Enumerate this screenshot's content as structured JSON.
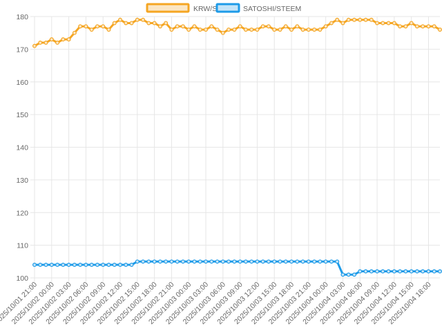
{
  "chart_data": {
    "type": "line",
    "legend_position": "top",
    "grid": true,
    "ylim": [
      100,
      180
    ],
    "y_ticks": [
      100,
      110,
      120,
      130,
      140,
      150,
      160,
      170,
      180
    ],
    "x_tick_labels": [
      "2025/10/01 21:00",
      "2025/10/02 00:00",
      "2025/10/02 03:00",
      "2025/10/02 06:00",
      "2025/10/02 09:00",
      "2025/10/02 12:00",
      "2025/10/02 15:00",
      "2025/10/02 18:00",
      "2025/10/02 21:00",
      "2025/10/03 00:00",
      "2025/10/03 03:00",
      "2025/10/03 06:00",
      "2025/10/03 09:00",
      "2025/10/03 12:00",
      "2025/10/03 15:00",
      "2025/10/03 18:00",
      "2025/10/03 21:00",
      "2025/10/04 00:00",
      "2025/10/04 03:00",
      "2025/10/04 06:00",
      "2025/10/04 09:00",
      "2025/10/04 12:00",
      "2025/10/04 15:00",
      "2025/10/04 18:00"
    ],
    "series": [
      {
        "name": "KRW/STEEM",
        "color": "#f5a623",
        "values": [
          171,
          172,
          172,
          173,
          172,
          173,
          173,
          175,
          177,
          177,
          176,
          177,
          177,
          176,
          178,
          179,
          178,
          178,
          179,
          179,
          178,
          178,
          177,
          178,
          176,
          177,
          177,
          176,
          177,
          176,
          176,
          177,
          176,
          175,
          176,
          176,
          177,
          176,
          176,
          176,
          177,
          177,
          176,
          176,
          177,
          176,
          177,
          176,
          176,
          176,
          176,
          177,
          178,
          179,
          178,
          179,
          179,
          179,
          179,
          179,
          178,
          178,
          178,
          178,
          177,
          177,
          178,
          177,
          177,
          177,
          177,
          176
        ]
      },
      {
        "name": "SATOSHI/STEEM",
        "color": "#1e9be8",
        "values": [
          104,
          104,
          104,
          104,
          104,
          104,
          104,
          104,
          104,
          104,
          104,
          104,
          104,
          104,
          104,
          104,
          104,
          104,
          105,
          105,
          105,
          105,
          105,
          105,
          105,
          105,
          105,
          105,
          105,
          105,
          105,
          105,
          105,
          105,
          105,
          105,
          105,
          105,
          105,
          105,
          105,
          105,
          105,
          105,
          105,
          105,
          105,
          105,
          105,
          105,
          105,
          105,
          105,
          105,
          101,
          101,
          101,
          102,
          102,
          102,
          102,
          102,
          102,
          102,
          102,
          102,
          102,
          102,
          102,
          102,
          102,
          102
        ]
      }
    ]
  }
}
